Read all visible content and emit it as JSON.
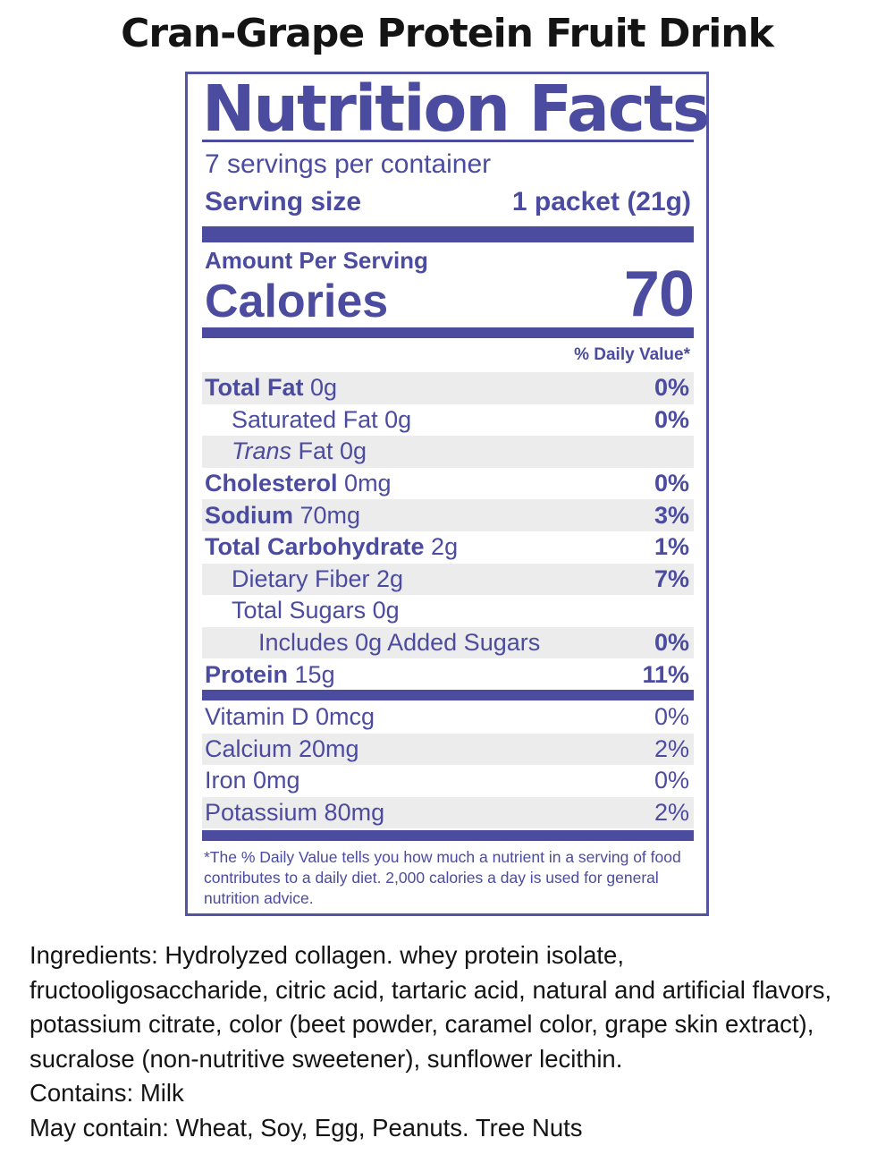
{
  "product_title": "Cran-Grape Protein Fruit Drink",
  "label": {
    "title": "Nutrition Facts",
    "servings_per_container": "7 servings per container",
    "serving_size_label": "Serving size",
    "serving_size_value": "1 packet (21g)",
    "amount_per_serving": "Amount Per Serving",
    "calories_label": "Calories",
    "calories_value": "70",
    "daily_value_header": "% Daily Value*",
    "nutrients": [
      {
        "name": "Total Fat",
        "amount": "0g",
        "dv": "0%"
      },
      {
        "name": "Saturated Fat 0g",
        "dv": "0%"
      },
      {
        "name_italic": "Trans",
        "name": "Fat 0g",
        "dv": ""
      },
      {
        "name": "Cholesterol",
        "amount": "0mg",
        "dv": "0%"
      },
      {
        "name": "Sodium",
        "amount": "70mg",
        "dv": "3%"
      },
      {
        "name": "Total Carbohydrate",
        "amount": "2g",
        "dv": "1%"
      },
      {
        "name": "Dietary Fiber 2g",
        "dv": "7%"
      },
      {
        "name": "Total Sugars 0g",
        "dv": ""
      },
      {
        "name": "Includes 0g Added Sugars",
        "dv": "0%"
      },
      {
        "name": "Protein",
        "amount": "15g",
        "dv": "11%"
      }
    ],
    "vitamins": [
      {
        "name": "Vitamin D 0mcg",
        "dv": "0%"
      },
      {
        "name": "Calcium 20mg",
        "dv": "2%"
      },
      {
        "name": "Iron 0mg",
        "dv": "0%"
      },
      {
        "name": "Potassium 80mg",
        "dv": "2%"
      }
    ],
    "footnote": "*The % Daily Value tells you how much a nutrient in a serving of food contributes to a daily diet. 2,000 calories a day is used for general nutrition advice.",
    "colors": {
      "ink": "#4b4ba0",
      "shade": "#ececec"
    }
  },
  "ingredients": {
    "text": "Ingredients: Hydrolyzed collagen. whey protein isolate, fructooligosaccharide, citric acid, tartaric acid, natural and artificial flavors, potassium citrate, color (beet powder, caramel color, grape skin extract), sucralose (non-nutritive sweetener), sunflower lecithin.",
    "contains": "Contains: Milk",
    "may_contain": "May contain: Wheat, Soy, Egg, Peanuts. Tree Nuts"
  }
}
